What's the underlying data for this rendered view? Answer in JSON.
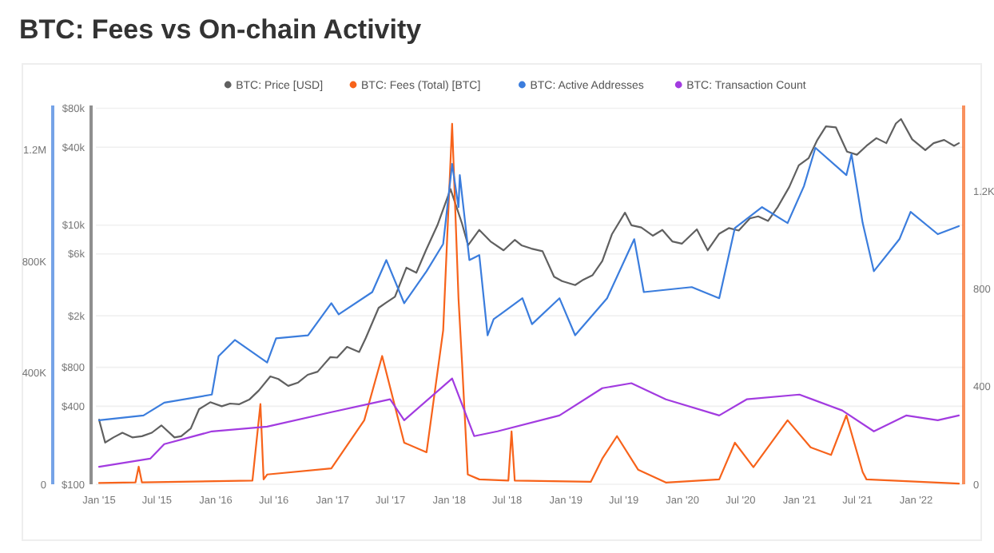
{
  "chart_data": {
    "type": "line",
    "title": "BTC: Fees vs On-chain Activity",
    "legend": "top",
    "grid": "y",
    "log": true,
    "xlim": [
      "2014-12-22",
      "2022-05-30"
    ],
    "xticks": [
      {
        "value": "2015-01-01",
        "label": "Jan '15"
      },
      {
        "value": "2015-07-01",
        "label": "Jul '15"
      },
      {
        "value": "2016-01-01",
        "label": "Jan '16"
      },
      {
        "value": "2016-07-01",
        "label": "Jul '16"
      },
      {
        "value": "2017-01-01",
        "label": "Jan '17"
      },
      {
        "value": "2017-07-01",
        "label": "Jul '17"
      },
      {
        "value": "2018-01-01",
        "label": "Jan '18"
      },
      {
        "value": "2018-07-01",
        "label": "Jul '18"
      },
      {
        "value": "2019-01-01",
        "label": "Jan '19"
      },
      {
        "value": "2019-07-01",
        "label": "Jul '19"
      },
      {
        "value": "2020-01-01",
        "label": "Jan '20"
      },
      {
        "value": "2020-07-01",
        "label": "Jul '20"
      },
      {
        "value": "2021-01-01",
        "label": "Jan '21"
      },
      {
        "value": "2021-07-01",
        "label": "Jul '21"
      },
      {
        "value": "2022-01-01",
        "label": "Jan '22"
      }
    ],
    "ylim": [
      100,
      84000
    ],
    "yticks": [
      {
        "value": 100,
        "label": "$100"
      },
      {
        "value": 400,
        "label": "$400"
      },
      {
        "value": 800,
        "label": "$800"
      },
      {
        "value": 2000,
        "label": "$2k"
      },
      {
        "value": 6000,
        "label": "$6k"
      },
      {
        "value": 10000,
        "label": "$10k"
      },
      {
        "value": 40000,
        "label": "$40k"
      },
      {
        "value": 80000,
        "label": "$80k"
      }
    ],
    "y2lim": [
      0,
      1360000
    ],
    "y2ticks": [
      0,
      {
        "value": 400000,
        "label": "400K"
      },
      {
        "value": 800000,
        "label": "800K"
      },
      {
        "value": 1200000,
        "label": "1.2M"
      }
    ],
    "y3lim": [
      0,
      1550
    ],
    "y3ticks": [
      0,
      400,
      800,
      {
        "value": 1200,
        "label": "1.2K"
      }
    ],
    "series": [
      {
        "name": "BTC: Price [USD]",
        "color": "#606060",
        "x": [
          "2015-01-01",
          "2015-01-20",
          "2015-02-15",
          "2015-03-15",
          "2015-04-15",
          "2015-05-15",
          "2015-06-15",
          "2015-07-15",
          "2015-08-25",
          "2015-09-15",
          "2015-10-15",
          "2015-11-10",
          "2015-12-15",
          "2016-01-20",
          "2016-02-15",
          "2016-03-15",
          "2016-04-15",
          "2016-05-15",
          "2016-06-20",
          "2016-07-15",
          "2016-08-15",
          "2016-09-15",
          "2016-10-15",
          "2016-11-15",
          "2016-12-25",
          "2017-01-15",
          "2017-02-15",
          "2017-03-25",
          "2017-04-15",
          "2017-05-25",
          "2017-06-15",
          "2017-07-15",
          "2017-08-20",
          "2017-09-20",
          "2017-10-20",
          "2017-11-25",
          "2018-01-05",
          "2018-02-10",
          "2018-03-01",
          "2018-04-05",
          "2018-05-10",
          "2018-06-20",
          "2018-07-25",
          "2018-08-15",
          "2018-09-15",
          "2018-10-20",
          "2018-11-25",
          "2018-12-20",
          "2019-01-30",
          "2019-02-25",
          "2019-03-25",
          "2019-04-25",
          "2019-05-25",
          "2019-07-05",
          "2019-07-25",
          "2019-08-25",
          "2019-09-30",
          "2019-10-30",
          "2019-11-30",
          "2019-12-30",
          "2020-02-15",
          "2020-03-20",
          "2020-04-25",
          "2020-05-25",
          "2020-06-25",
          "2020-07-30",
          "2020-08-25",
          "2020-09-25",
          "2020-10-25",
          "2020-11-30",
          "2020-12-30",
          "2021-01-30",
          "2021-02-25",
          "2021-03-25",
          "2021-04-25",
          "2021-05-30",
          "2021-06-30",
          "2021-07-30",
          "2021-08-30",
          "2021-09-30",
          "2021-10-30",
          "2021-11-15",
          "2021-12-20",
          "2022-01-30",
          "2022-02-25",
          "2022-03-30",
          "2022-04-30",
          "2022-05-15"
        ],
        "values": [
          315,
          210,
          230,
          250,
          230,
          235,
          250,
          285,
          230,
          235,
          270,
          380,
          430,
          400,
          420,
          415,
          450,
          530,
          680,
          650,
          575,
          610,
          700,
          740,
          960,
          950,
          1150,
          1050,
          1350,
          2300,
          2500,
          2800,
          4700,
          4300,
          6400,
          10000,
          19000,
          10300,
          7000,
          9200,
          7500,
          6400,
          7700,
          7000,
          6600,
          6300,
          4000,
          3700,
          3450,
          3800,
          4100,
          5300,
          8500,
          12500,
          10000,
          9600,
          8300,
          9200,
          7500,
          7200,
          9300,
          6400,
          8600,
          9500,
          9100,
          11300,
          11700,
          10800,
          13800,
          19700,
          29000,
          33000,
          45000,
          58000,
          57000,
          37000,
          35000,
          41000,
          47000,
          43000,
          61000,
          66000,
          46000,
          38000,
          43000,
          45500,
          41000,
          43000
        ]
      },
      {
        "name": "BTC: Fees (Total) [BTC]",
        "color": "#f7631b",
        "axis": "y3",
        "x": [
          "2015-01-01",
          "2015-04-25",
          "2015-05-05",
          "2015-05-15",
          "2016-04-25",
          "2016-05-20",
          "2016-05-30",
          "2016-06-10",
          "2016-12-28",
          "2017-04-10",
          "2017-06-05",
          "2017-08-13",
          "2017-10-22",
          "2017-12-13",
          "2018-01-10",
          "2018-01-30",
          "2018-02-10",
          "2018-02-28",
          "2018-04-05",
          "2018-07-05",
          "2018-07-15",
          "2018-07-25",
          "2019-03-20",
          "2019-04-25",
          "2019-06-10",
          "2019-08-15",
          "2019-11-10",
          "2020-04-25",
          "2020-06-13",
          "2020-08-10",
          "2020-11-25",
          "2021-02-05",
          "2021-04-10",
          "2021-05-28",
          "2021-07-18",
          "2021-07-30",
          "2022-05-15"
        ],
        "values": [
          5,
          8,
          72,
          8,
          15,
          328,
          20,
          40,
          65,
          262,
          525,
          170,
          131,
          630,
          1475,
          760,
          498,
          40,
          20,
          15,
          216,
          15,
          10,
          105,
          197,
          60,
          7,
          20,
          170,
          70,
          262,
          151,
          120,
          282,
          50,
          20,
          3
        ]
      },
      {
        "name": "BTC: Active Addresses",
        "color": "#3b7ddd",
        "axis": "y2",
        "x": [
          "2015-01-01",
          "2015-05-20",
          "2015-07-24",
          "2015-12-20",
          "2016-01-10",
          "2016-03-01",
          "2016-06-10",
          "2016-07-08",
          "2016-10-16",
          "2016-12-28",
          "2017-01-20",
          "2017-05-05",
          "2017-06-18",
          "2017-08-13",
          "2017-10-22",
          "2017-12-13",
          "2018-01-10",
          "2018-01-30",
          "2018-02-03",
          "2018-03-05",
          "2018-04-05",
          "2018-05-01",
          "2018-05-20",
          "2018-06-10",
          "2018-08-18",
          "2018-09-17",
          "2018-12-12",
          "2019-01-30",
          "2019-05-10",
          "2019-08-03",
          "2019-09-02",
          "2020-01-30",
          "2020-04-25",
          "2020-06-13",
          "2020-09-06",
          "2020-11-25",
          "2021-01-15",
          "2021-02-20",
          "2021-05-28",
          "2021-06-13",
          "2021-07-18",
          "2021-08-22",
          "2021-11-10",
          "2021-12-15",
          "2022-03-10",
          "2022-05-15"
        ],
        "values": [
          230000,
          247000,
          293000,
          322000,
          460000,
          518000,
          437000,
          524000,
          535000,
          650000,
          610000,
          690000,
          805000,
          650000,
          765000,
          863000,
          1150000,
          995000,
          1110000,
          805000,
          823000,
          535000,
          593000,
          610000,
          668000,
          575000,
          668000,
          535000,
          668000,
          880000,
          690000,
          708000,
          668000,
          920000,
          995000,
          938000,
          1070000,
          1208000,
          1110000,
          1185000,
          938000,
          765000,
          880000,
          978000,
          898000,
          927000
        ]
      },
      {
        "name": "BTC: Transaction Count",
        "color": "#a23be0",
        "axis": "y2",
        "x": [
          "2015-01-01",
          "2015-06-10",
          "2015-07-24",
          "2015-12-20",
          "2016-06-10",
          "2016-12-28",
          "2017-06-30",
          "2017-08-13",
          "2018-01-10",
          "2018-03-20",
          "2018-06-01",
          "2018-12-12",
          "2019-04-25",
          "2019-07-25",
          "2019-11-10",
          "2020-04-25",
          "2020-07-20",
          "2021-01-01",
          "2021-05-15",
          "2021-08-22",
          "2021-12-01",
          "2022-03-10",
          "2022-05-15"
        ],
        "values": [
          63000,
          92000,
          144000,
          190000,
          207000,
          259000,
          305000,
          230000,
          380000,
          173000,
          190000,
          247000,
          345000,
          363000,
          305000,
          247000,
          305000,
          322000,
          265000,
          190000,
          247000,
          230000,
          247000
        ]
      }
    ]
  }
}
